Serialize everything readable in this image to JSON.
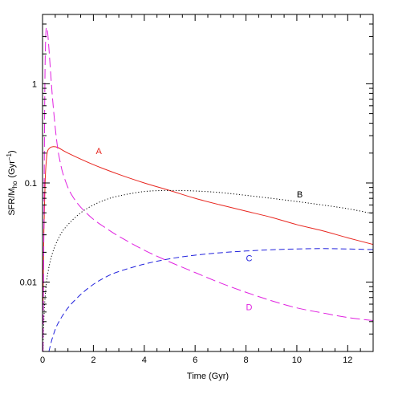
{
  "chart_data": {
    "type": "line",
    "xlabel": "Time (Gyr)",
    "ylabel_main": "SFR/M",
    "ylabel_sub": "ho",
    "ylabel_unit": "(Gyr",
    "ylabel_exp": "−1",
    "ylabel_close": ")",
    "xlim": [
      0,
      13
    ],
    "ylim": [
      0.002,
      5
    ],
    "yscale": "log",
    "grid": false,
    "x_ticks": [
      0,
      2,
      4,
      6,
      8,
      10,
      12
    ],
    "x_tick_labels": [
      "0",
      "2",
      "4",
      "6",
      "8",
      "10",
      "12"
    ],
    "y_ticks": [
      0.01,
      0.1,
      1
    ],
    "y_tick_labels": [
      "0.01",
      "0.1",
      "1"
    ],
    "series": [
      {
        "name": "A",
        "color": "#e8261f",
        "dash": "",
        "label_at": [
          2.1,
          0.21
        ],
        "x": [
          0.02,
          0.05,
          0.1,
          0.15,
          0.2,
          0.3,
          0.4,
          0.6,
          1,
          2,
          3,
          4,
          5,
          6,
          7,
          8,
          9,
          10,
          11,
          12,
          13
        ],
        "y": [
          0.006,
          0.03,
          0.1,
          0.17,
          0.21,
          0.227,
          0.232,
          0.228,
          0.2,
          0.153,
          0.122,
          0.1,
          0.084,
          0.07,
          0.06,
          0.052,
          0.045,
          0.038,
          0.033,
          0.028,
          0.024
        ]
      },
      {
        "name": "B",
        "color": "#000000",
        "dash": "1.2,2.4",
        "label_at": [
          10.0,
          0.077
        ],
        "x": [
          0.02,
          0.05,
          0.1,
          0.2,
          0.4,
          0.7,
          1,
          1.5,
          2,
          2.5,
          3,
          4,
          5,
          6,
          7,
          8,
          9,
          10,
          11,
          12,
          13
        ],
        "y": [
          0.002,
          0.004,
          0.007,
          0.012,
          0.02,
          0.03,
          0.038,
          0.05,
          0.06,
          0.068,
          0.074,
          0.082,
          0.084,
          0.083,
          0.08,
          0.075,
          0.07,
          0.065,
          0.06,
          0.055,
          0.049
        ]
      },
      {
        "name": "C",
        "color": "#2222dd",
        "dash": "7,4",
        "label_at": [
          8.0,
          0.0175
        ],
        "x": [
          0.25,
          0.4,
          0.6,
          1,
          1.5,
          2,
          2.5,
          3,
          4,
          5,
          6,
          7,
          8,
          9,
          10,
          11,
          12,
          13
        ],
        "y": [
          0.002,
          0.0028,
          0.0038,
          0.0055,
          0.0075,
          0.0095,
          0.0113,
          0.0128,
          0.0152,
          0.0172,
          0.0187,
          0.0198,
          0.0206,
          0.0212,
          0.0216,
          0.0218,
          0.0216,
          0.0213
        ]
      },
      {
        "name": "D",
        "color": "#e020e0",
        "dash": "12,5",
        "label_at": [
          8.0,
          0.0056
        ],
        "x": [
          0.02,
          0.04,
          0.06,
          0.08,
          0.1,
          0.13,
          0.16,
          0.2,
          0.25,
          0.3,
          0.35,
          0.4,
          0.5,
          0.6,
          0.7,
          0.8,
          1,
          1.2,
          1.5,
          2,
          2.5,
          3,
          4,
          5,
          6,
          7,
          8,
          9,
          10,
          11,
          12,
          13
        ],
        "y": [
          0.002,
          0.01,
          0.06,
          0.4,
          1.5,
          3.2,
          3.7,
          3.3,
          2.3,
          1.5,
          1.0,
          0.68,
          0.36,
          0.22,
          0.16,
          0.125,
          0.09,
          0.072,
          0.057,
          0.043,
          0.035,
          0.029,
          0.021,
          0.016,
          0.0125,
          0.0098,
          0.0079,
          0.0065,
          0.0055,
          0.0049,
          0.0044,
          0.0041
        ]
      }
    ]
  }
}
